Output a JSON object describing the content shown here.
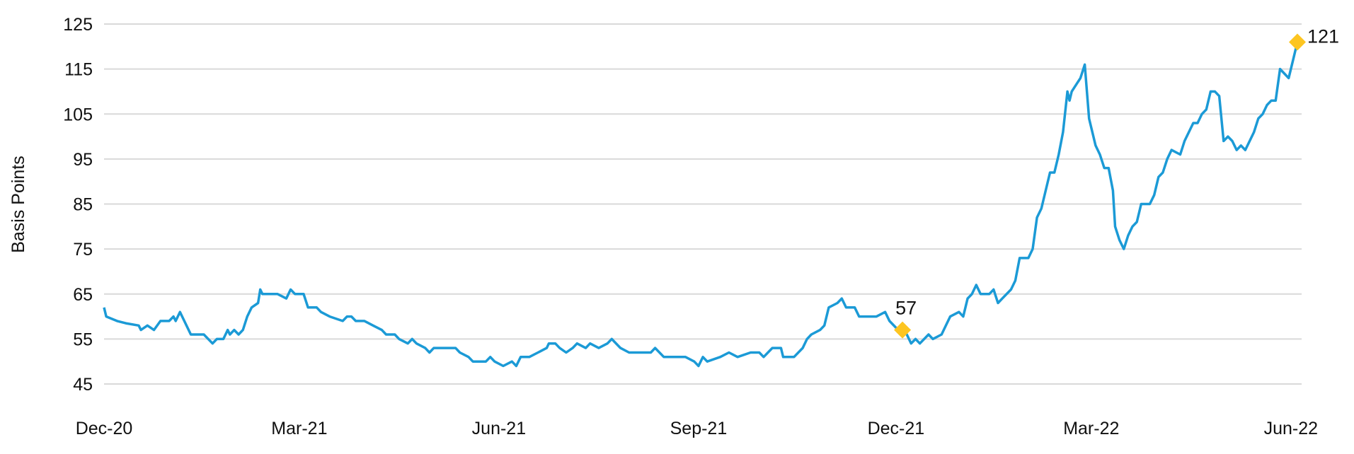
{
  "chart_data": {
    "type": "line",
    "title": "",
    "xlabel": "",
    "ylabel": "Basis Points",
    "ylim": [
      45,
      125
    ],
    "yticks": [
      45,
      55,
      65,
      75,
      85,
      95,
      105,
      115,
      125
    ],
    "xlim": [
      "2020-12-01",
      "2022-06-04"
    ],
    "xticks": [
      {
        "date": "2020-12-01",
        "label": "Dec-20"
      },
      {
        "date": "2021-03-01",
        "label": "Mar-21"
      },
      {
        "date": "2021-06-01",
        "label": "Jun-21"
      },
      {
        "date": "2021-09-01",
        "label": "Sep-21"
      },
      {
        "date": "2021-12-01",
        "label": "Dec-21"
      },
      {
        "date": "2022-03-01",
        "label": "Mar-22"
      },
      {
        "date": "2022-06-01",
        "label": "Jun-22"
      }
    ],
    "grid": true,
    "colors": {
      "line": "#1b9ad6",
      "marker": "#fdc521",
      "grid": "#d9d9d9"
    },
    "series": [
      {
        "points": [
          [
            "2020-12-01",
            62
          ],
          [
            "2020-12-02",
            60
          ],
          [
            "2020-12-07",
            59
          ],
          [
            "2020-12-11",
            58.5
          ],
          [
            "2020-12-17",
            58
          ],
          [
            "2020-12-18",
            57
          ],
          [
            "2020-12-21",
            58
          ],
          [
            "2020-12-24",
            57
          ],
          [
            "2020-12-27",
            59
          ],
          [
            "2020-12-31",
            59
          ],
          [
            "2021-01-02",
            60
          ],
          [
            "2021-01-03",
            59
          ],
          [
            "2021-01-05",
            61
          ],
          [
            "2021-01-07",
            59
          ],
          [
            "2021-01-10",
            56
          ],
          [
            "2021-01-16",
            56
          ],
          [
            "2021-01-20",
            54
          ],
          [
            "2021-01-22",
            55
          ],
          [
            "2021-01-25",
            55
          ],
          [
            "2021-01-27",
            57
          ],
          [
            "2021-01-28",
            56
          ],
          [
            "2021-01-30",
            57
          ],
          [
            "2021-02-01",
            56
          ],
          [
            "2021-02-03",
            57
          ],
          [
            "2021-02-05",
            60
          ],
          [
            "2021-02-07",
            62
          ],
          [
            "2021-02-10",
            63
          ],
          [
            "2021-02-11",
            66
          ],
          [
            "2021-02-12",
            65
          ],
          [
            "2021-02-19",
            65
          ],
          [
            "2021-02-23",
            64
          ],
          [
            "2021-02-25",
            66
          ],
          [
            "2021-02-27",
            65
          ],
          [
            "2021-03-03",
            65
          ],
          [
            "2021-03-05",
            62
          ],
          [
            "2021-03-09",
            62
          ],
          [
            "2021-03-11",
            61
          ],
          [
            "2021-03-15",
            60
          ],
          [
            "2021-03-21",
            59
          ],
          [
            "2021-03-23",
            60
          ],
          [
            "2021-03-25",
            60
          ],
          [
            "2021-03-27",
            59
          ],
          [
            "2021-03-31",
            59
          ],
          [
            "2021-04-04",
            58
          ],
          [
            "2021-04-08",
            57
          ],
          [
            "2021-04-10",
            56
          ],
          [
            "2021-04-14",
            56
          ],
          [
            "2021-04-16",
            55
          ],
          [
            "2021-04-20",
            54
          ],
          [
            "2021-04-22",
            55
          ],
          [
            "2021-04-24",
            54
          ],
          [
            "2021-04-28",
            53
          ],
          [
            "2021-04-30",
            52
          ],
          [
            "2021-05-02",
            53
          ],
          [
            "2021-05-12",
            53
          ],
          [
            "2021-05-14",
            52
          ],
          [
            "2021-05-18",
            51
          ],
          [
            "2021-05-20",
            50
          ],
          [
            "2021-05-26",
            50
          ],
          [
            "2021-05-28",
            51
          ],
          [
            "2021-05-30",
            50
          ],
          [
            "2021-06-03",
            49
          ],
          [
            "2021-06-07",
            50
          ],
          [
            "2021-06-09",
            49
          ],
          [
            "2021-06-11",
            51
          ],
          [
            "2021-06-15",
            51
          ],
          [
            "2021-06-19",
            52
          ],
          [
            "2021-06-23",
            53
          ],
          [
            "2021-06-24",
            54
          ],
          [
            "2021-06-27",
            54
          ],
          [
            "2021-06-29",
            53
          ],
          [
            "2021-07-02",
            52
          ],
          [
            "2021-07-05",
            53
          ],
          [
            "2021-07-07",
            54
          ],
          [
            "2021-07-11",
            53
          ],
          [
            "2021-07-13",
            54
          ],
          [
            "2021-07-17",
            53
          ],
          [
            "2021-07-21",
            54
          ],
          [
            "2021-07-23",
            55
          ],
          [
            "2021-07-27",
            53
          ],
          [
            "2021-07-31",
            52
          ],
          [
            "2021-08-10",
            52
          ],
          [
            "2021-08-12",
            53
          ],
          [
            "2021-08-16",
            51
          ],
          [
            "2021-08-26",
            51
          ],
          [
            "2021-08-30",
            50
          ],
          [
            "2021-09-01",
            49
          ],
          [
            "2021-09-03",
            51
          ],
          [
            "2021-09-05",
            50
          ],
          [
            "2021-09-11",
            51
          ],
          [
            "2021-09-15",
            52
          ],
          [
            "2021-09-19",
            51
          ],
          [
            "2021-09-25",
            52
          ],
          [
            "2021-09-29",
            52
          ],
          [
            "2021-10-01",
            51
          ],
          [
            "2021-10-03",
            52
          ],
          [
            "2021-10-05",
            53
          ],
          [
            "2021-10-09",
            53
          ],
          [
            "2021-10-10",
            51
          ],
          [
            "2021-10-15",
            51
          ],
          [
            "2021-10-19",
            53
          ],
          [
            "2021-10-21",
            55
          ],
          [
            "2021-10-23",
            56
          ],
          [
            "2021-10-27",
            57
          ],
          [
            "2021-10-29",
            58
          ],
          [
            "2021-10-31",
            62
          ],
          [
            "2021-11-04",
            63
          ],
          [
            "2021-11-06",
            64
          ],
          [
            "2021-11-08",
            62
          ],
          [
            "2021-11-12",
            62
          ],
          [
            "2021-11-14",
            60
          ],
          [
            "2021-11-22",
            60
          ],
          [
            "2021-11-26",
            61
          ],
          [
            "2021-11-28",
            59
          ],
          [
            "2021-12-02",
            57
          ],
          [
            "2021-12-04",
            57
          ],
          [
            "2021-12-06",
            56
          ],
          [
            "2021-12-08",
            54
          ],
          [
            "2021-12-10",
            55
          ],
          [
            "2021-12-12",
            54
          ],
          [
            "2021-12-16",
            56
          ],
          [
            "2021-12-18",
            55
          ],
          [
            "2021-12-22",
            56
          ],
          [
            "2021-12-24",
            58
          ],
          [
            "2021-12-26",
            60
          ],
          [
            "2021-12-30",
            61
          ],
          [
            "2022-01-01",
            60
          ],
          [
            "2022-01-03",
            64
          ],
          [
            "2022-01-05",
            65
          ],
          [
            "2022-01-07",
            67
          ],
          [
            "2022-01-09",
            65
          ],
          [
            "2022-01-13",
            65
          ],
          [
            "2022-01-15",
            66
          ],
          [
            "2022-01-17",
            63
          ],
          [
            "2022-01-19",
            64
          ],
          [
            "2022-01-23",
            66
          ],
          [
            "2022-01-25",
            68
          ],
          [
            "2022-01-27",
            73
          ],
          [
            "2022-01-31",
            73
          ],
          [
            "2022-02-02",
            75
          ],
          [
            "2022-02-04",
            82
          ],
          [
            "2022-02-06",
            84
          ],
          [
            "2022-02-08",
            88
          ],
          [
            "2022-02-10",
            92
          ],
          [
            "2022-02-12",
            92
          ],
          [
            "2022-02-14",
            96
          ],
          [
            "2022-02-16",
            101
          ],
          [
            "2022-02-18",
            110
          ],
          [
            "2022-02-19",
            108
          ],
          [
            "2022-02-20",
            110
          ],
          [
            "2022-02-24",
            113
          ],
          [
            "2022-02-26",
            116
          ],
          [
            "2022-02-28",
            104
          ],
          [
            "2022-03-03",
            98
          ],
          [
            "2022-03-05",
            96
          ],
          [
            "2022-03-07",
            93
          ],
          [
            "2022-03-09",
            93
          ],
          [
            "2022-03-11",
            88
          ],
          [
            "2022-03-12",
            80
          ],
          [
            "2022-03-14",
            77
          ],
          [
            "2022-03-16",
            75
          ],
          [
            "2022-03-18",
            78
          ],
          [
            "2022-03-20",
            80
          ],
          [
            "2022-03-22",
            81
          ],
          [
            "2022-03-24",
            85
          ],
          [
            "2022-03-26",
            85
          ],
          [
            "2022-03-28",
            85
          ],
          [
            "2022-03-30",
            87
          ],
          [
            "2022-04-01",
            91
          ],
          [
            "2022-04-03",
            92
          ],
          [
            "2022-04-05",
            95
          ],
          [
            "2022-04-07",
            97
          ],
          [
            "2022-04-11",
            96
          ],
          [
            "2022-04-13",
            99
          ],
          [
            "2022-04-17",
            103
          ],
          [
            "2022-04-19",
            103
          ],
          [
            "2022-04-21",
            105
          ],
          [
            "2022-04-23",
            106
          ],
          [
            "2022-04-25",
            110
          ],
          [
            "2022-04-27",
            110
          ],
          [
            "2022-04-29",
            109
          ],
          [
            "2022-05-01",
            99
          ],
          [
            "2022-05-03",
            100
          ],
          [
            "2022-05-05",
            99
          ],
          [
            "2022-05-07",
            97
          ],
          [
            "2022-05-09",
            98
          ],
          [
            "2022-05-11",
            97
          ],
          [
            "2022-05-13",
            99
          ],
          [
            "2022-05-15",
            101
          ],
          [
            "2022-05-17",
            104
          ],
          [
            "2022-05-19",
            105
          ],
          [
            "2022-05-21",
            107
          ],
          [
            "2022-05-23",
            108
          ],
          [
            "2022-05-25",
            108
          ],
          [
            "2022-05-27",
            115
          ],
          [
            "2022-05-29",
            114
          ],
          [
            "2022-05-31",
            113
          ],
          [
            "2022-06-02",
            117
          ],
          [
            "2022-06-04",
            121
          ]
        ]
      }
    ],
    "annotations": [
      {
        "date": "2021-12-04",
        "value": 57,
        "label": "57",
        "marker": "diamond"
      },
      {
        "date": "2022-06-04",
        "value": 121,
        "label": "121",
        "marker": "diamond"
      }
    ]
  }
}
